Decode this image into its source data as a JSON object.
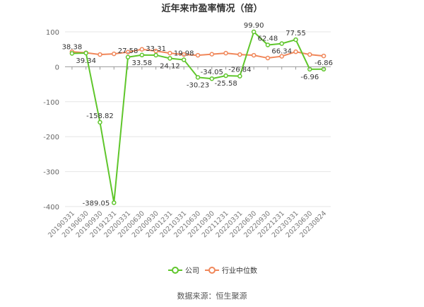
{
  "chart_data": {
    "type": "line",
    "title": "近年来市盈率情况（倍）",
    "categories": [
      "20190331",
      "20190630",
      "20190930",
      "20191231",
      "20200331",
      "20200630",
      "20200930",
      "20201231",
      "20210331",
      "20210630",
      "20210930",
      "20211231",
      "20220331",
      "20220630",
      "20220930",
      "20221231",
      "20230331",
      "20230630",
      "20230824"
    ],
    "series": [
      {
        "name": "公司",
        "color": "#5fc62b",
        "values": [
          38.38,
          39.34,
          -158.82,
          -389.05,
          27.58,
          33.58,
          33.31,
          24.12,
          19.98,
          -30.23,
          -34.05,
          -25.58,
          -26.84,
          99.9,
          62.48,
          66.34,
          77.55,
          -6.96,
          -6.86
        ],
        "labels": [
          "38.38",
          "39.34",
          "-158.82",
          "-389.05",
          "27.58",
          "33.58",
          "33.31",
          "24.12",
          "19.98",
          "-30.23",
          "-34.05",
          "-25.58",
          "-26.84",
          "99.90",
          "62.48",
          "66.34",
          "77.55",
          "-6.96",
          "-6.86"
        ]
      },
      {
        "name": "行业中位数",
        "color": "#f0875a",
        "values": [
          43,
          40,
          35,
          37,
          42,
          50,
          45,
          39,
          35,
          33,
          36,
          39,
          35,
          33,
          25,
          30,
          43,
          35,
          31
        ]
      }
    ],
    "yticks": [
      100,
      0,
      -100,
      -200,
      -300,
      -400
    ],
    "ylim": [
      -400,
      100
    ],
    "grid": true,
    "legend": "bottom"
  },
  "source": "数据来源：恒生聚源"
}
